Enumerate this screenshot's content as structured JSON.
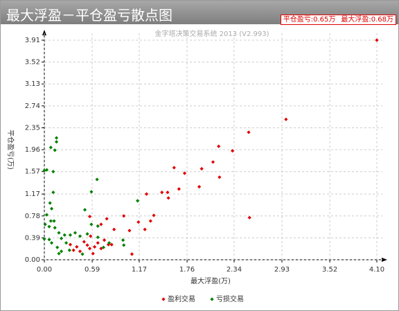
{
  "header": {
    "title": "最大浮盈－平仓盈亏散点图",
    "stats": [
      "平仓盈亏:0.65万",
      "最大浮盈:0.68万"
    ]
  },
  "chart_data": {
    "type": "scatter",
    "subtitle": "金字塔决策交易系统 2013 (V2.993)",
    "xlabel": "最大浮盈(万)",
    "ylabel": "平仓盈亏(万)",
    "xlim": [
      0,
      4.1
    ],
    "ylim": [
      0,
      3.91
    ],
    "xticks": [
      {
        "value": 0,
        "label": "0.00"
      },
      0.59,
      1.17,
      1.76,
      2.34,
      2.93,
      3.52,
      {
        "value": 4.1,
        "label": "4.10"
      }
    ],
    "yticks": [
      {
        "value": 0,
        "label": "0.00"
      },
      0.39,
      0.78,
      1.17,
      1.57,
      1.96,
      2.35,
      2.74,
      3.13,
      3.52,
      3.91
    ],
    "grid": true,
    "series": [
      {
        "name": "盈利交易",
        "color": "#e00000",
        "x": [
          4.1,
          2.98,
          2.52,
          2.15,
          2.32,
          2.08,
          1.94,
          1.6,
          1.73,
          2.16,
          1.66,
          1.91,
          1.26,
          1.45,
          1.52,
          1.53,
          2.53,
          1.35,
          1.31,
          1.16,
          1.24,
          0.98,
          1.05,
          0.86,
          0.77,
          0.7,
          0.56,
          0.57,
          0.32,
          0.4,
          0.44,
          0.49,
          0.53,
          0.56,
          0.62,
          0.66,
          0.7,
          0.74,
          0.79,
          0.83,
          1.08,
          0.6,
          0.36
        ],
        "values": [
          3.91,
          2.5,
          2.27,
          2.02,
          1.94,
          1.74,
          1.62,
          1.64,
          1.54,
          1.47,
          1.26,
          1.3,
          1.17,
          1.2,
          1.2,
          1.1,
          0.75,
          0.79,
          0.69,
          0.67,
          0.54,
          0.78,
          0.52,
          0.54,
          0.73,
          0.63,
          0.77,
          0.42,
          0.27,
          0.23,
          0.15,
          0.32,
          0.26,
          0.2,
          0.23,
          0.3,
          0.2,
          0.35,
          0.27,
          0.27,
          0.1,
          0.11,
          0.17
        ]
      },
      {
        "name": "亏损交易",
        "color": "#008000",
        "x": [
          0,
          0.03,
          0.15,
          0.15,
          0.08,
          0.13,
          0.11,
          0.11,
          0.65,
          0.58,
          1.15,
          0.07,
          0.09,
          0.03,
          0.08,
          0.12,
          0.01,
          0.06,
          0.13,
          0.18,
          0.25,
          0.5,
          0.58,
          0.66,
          0.32,
          0,
          0.06,
          0.09,
          0.21,
          0.27,
          0.16,
          0.21,
          0.31,
          0.44,
          0.53,
          0.47,
          0.66,
          0.73,
          0.8,
          0.97,
          0.98,
          0.18,
          0.38
        ],
        "values": [
          1.59,
          1.6,
          2.17,
          2.1,
          2.0,
          1.95,
          1.57,
          1.2,
          1.43,
          1.21,
          1.05,
          1.01,
          0.91,
          0.8,
          0.69,
          0.69,
          0.63,
          0.59,
          0.57,
          0.48,
          0.44,
          0.89,
          0.63,
          0.6,
          0.44,
          0.37,
          0.36,
          0.3,
          0.38,
          0.3,
          0.22,
          0.15,
          0.17,
          0.42,
          0.46,
          0.1,
          0.4,
          0.22,
          0.3,
          0.35,
          0.26,
          0.11,
          0.48
        ]
      }
    ]
  }
}
